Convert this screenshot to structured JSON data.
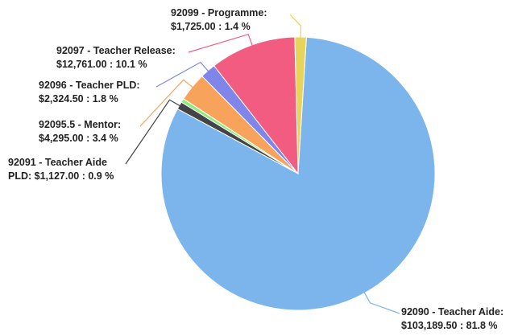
{
  "chart_data": {
    "type": "pie",
    "series": [
      {
        "name": "",
        "slices": [
          {
            "label_line1": "92099 - Programme:",
            "label_line2": "$1,725.00 : 1.4 %",
            "value": 1725.0,
            "percent": 1.4,
            "color": "#e8d45a"
          },
          {
            "label_line1": "92090 - Teacher Aide:",
            "label_line2": "$103,189.50 : 81.8 %",
            "value": 103189.5,
            "percent": 81.8,
            "color": "#7cb5ec"
          },
          {
            "label_line1": "92091 - Teacher Aide",
            "label_line2": "PLD: $1,127.00 : 0.9 %",
            "value": 1127.0,
            "percent": 0.9,
            "color": "#434348"
          },
          {
            "label_line1": "",
            "label_line2": "",
            "value": 600.0,
            "percent": 0.5,
            "color": "#90ed7d"
          },
          {
            "label_line1": "92095.5 - Mentor:",
            "label_line2": "$4,295.00 : 3.4 %",
            "value": 4295.0,
            "percent": 3.4,
            "color": "#f7a35c"
          },
          {
            "label_line1": "92096 - Teacher PLD:",
            "label_line2": "$2,324.50 : 1.8 %",
            "value": 2324.5,
            "percent": 1.8,
            "color": "#8085e9"
          },
          {
            "label_line1": "92097 - Teacher Release:",
            "label_line2": "$12,761.00 : 10.1 %",
            "value": 12761.0,
            "percent": 10.1,
            "color": "#f15c80"
          }
        ]
      }
    ]
  }
}
